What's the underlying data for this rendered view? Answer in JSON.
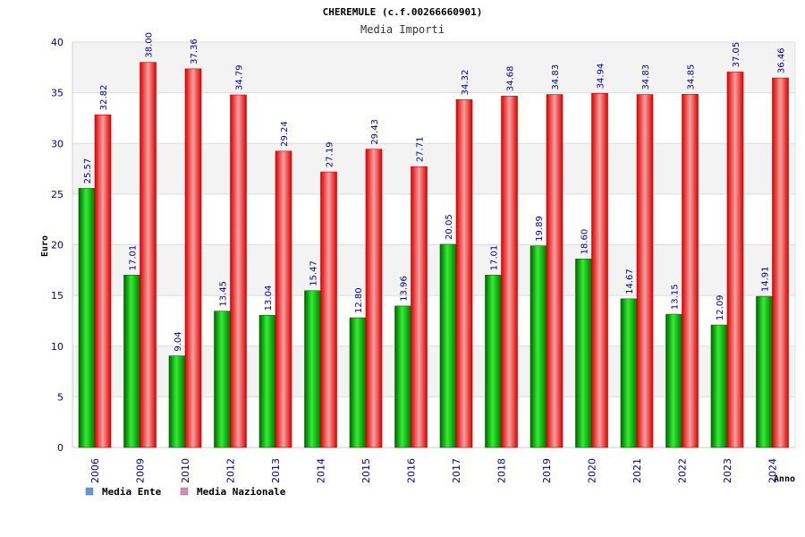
{
  "chart_data": {
    "type": "bar",
    "title": "CHEREMULE (c.f.00266660901)",
    "subtitle": "Media Importi",
    "ylabel": "Euro",
    "xlabel": "Anno",
    "ylim": [
      0,
      40
    ],
    "yticks": [
      "0",
      "5",
      "10",
      "15",
      "20",
      "25",
      "30",
      "35",
      "40"
    ],
    "grid": true,
    "legend_position": "bottom-left",
    "categories": [
      "2006",
      "2009",
      "2010",
      "2012",
      "2013",
      "2014",
      "2015",
      "2016",
      "2017",
      "2018",
      "2019",
      "2020",
      "2021",
      "2022",
      "2023",
      "2024"
    ],
    "series": [
      {
        "name": "Media Ente",
        "color": "#00aa00",
        "values": [
          25.57,
          17.01,
          9.04,
          13.45,
          13.04,
          15.47,
          12.8,
          13.96,
          20.05,
          17.01,
          19.89,
          18.6,
          14.67,
          13.15,
          12.09,
          14.91
        ],
        "labels": [
          "25.57",
          "17.01",
          "9.04",
          "13.45",
          "13.04",
          "15.47",
          "12.80",
          "13.96",
          "20.05",
          "17.01",
          "19.89",
          "18.60",
          "14.67",
          "13.15",
          "12.09",
          "14.91"
        ]
      },
      {
        "name": "Media Nazionale",
        "color": "#ee1111",
        "values": [
          32.82,
          38.0,
          37.36,
          34.79,
          29.24,
          27.19,
          29.43,
          27.71,
          34.32,
          34.68,
          34.83,
          34.94,
          34.83,
          34.85,
          37.05,
          36.46
        ],
        "labels": [
          "32.82",
          "38.00",
          "37.36",
          "34.79",
          "29.24",
          "27.19",
          "29.43",
          "27.71",
          "34.32",
          "34.68",
          "34.83",
          "34.94",
          "34.83",
          "34.85",
          "37.05",
          "36.46"
        ]
      }
    ],
    "legend": [
      {
        "label": "Media Ente",
        "color": "#5b9bd5"
      },
      {
        "label": "Media Nazionale",
        "color": "#d98cb3"
      }
    ]
  }
}
